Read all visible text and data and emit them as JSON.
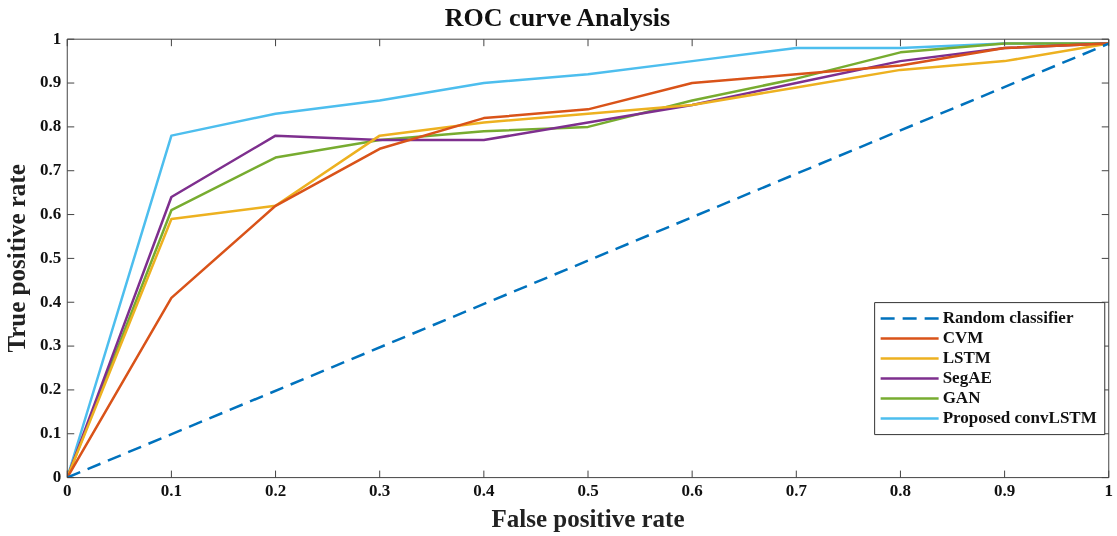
{
  "chart_data": {
    "type": "line",
    "title": "ROC curve Analysis",
    "xlabel": "False positive rate",
    "ylabel": "True positive rate",
    "x": [
      0,
      0.1,
      0.2,
      0.3,
      0.4,
      0.5,
      0.6,
      0.7,
      0.8,
      0.9,
      1
    ],
    "series": [
      {
        "name": "Random classifier",
        "color": "#0072bd",
        "line_style": "dashed",
        "x": [
          0,
          1
        ],
        "values": [
          0,
          0.99
        ]
      },
      {
        "name": "CVM",
        "color": "#d95319",
        "values": [
          0,
          0.41,
          0.62,
          0.75,
          0.82,
          0.84,
          0.9,
          0.92,
          0.94,
          0.98,
          0.99
        ]
      },
      {
        "name": "LSTM",
        "color": "#edb120",
        "values": [
          0,
          0.59,
          0.62,
          0.78,
          0.81,
          0.83,
          0.85,
          0.89,
          0.93,
          0.95,
          0.99
        ]
      },
      {
        "name": "SegAE",
        "color": "#7e2f8e",
        "values": [
          0,
          0.64,
          0.78,
          0.77,
          0.77,
          0.81,
          0.85,
          0.9,
          0.95,
          0.98,
          0.99
        ]
      },
      {
        "name": "GAN",
        "color": "#77ac30",
        "values": [
          0,
          0.61,
          0.73,
          0.77,
          0.79,
          0.8,
          0.86,
          0.91,
          0.97,
          0.99,
          0.99
        ]
      },
      {
        "name": "Proposed convLSTM",
        "color": "#4dbeee",
        "values": [
          0,
          0.78,
          0.83,
          0.86,
          0.9,
          0.92,
          0.95,
          0.98,
          0.98,
          0.99,
          0.99
        ]
      }
    ],
    "xlim": [
      0,
      1
    ],
    "ylim": [
      0,
      1
    ],
    "xticks": [
      0,
      0.1,
      0.2,
      0.3,
      0.4,
      0.5,
      0.6,
      0.7,
      0.8,
      0.9,
      1
    ],
    "yticks": [
      0,
      0.1,
      0.2,
      0.3,
      0.4,
      0.5,
      0.6,
      0.7,
      0.8,
      0.9,
      1
    ],
    "grid": false,
    "legend": "bottom right",
    "marker": "none",
    "line_style": "solid"
  }
}
